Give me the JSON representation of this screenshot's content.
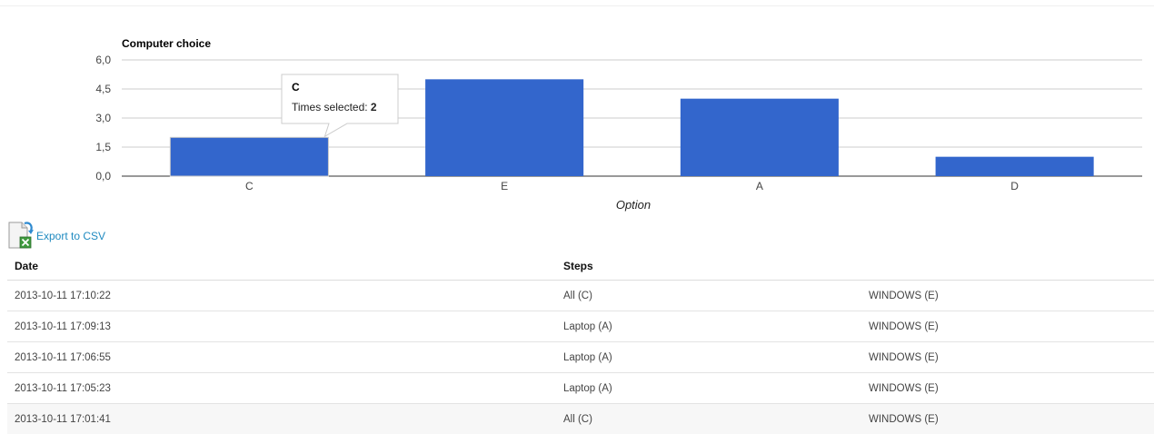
{
  "chart_data": {
    "type": "bar",
    "title": "Computer choice",
    "categories": [
      "C",
      "E",
      "A",
      "D"
    ],
    "series": [
      {
        "values": [
          2,
          5,
          4,
          1
        ]
      }
    ],
    "xlabel": "Option",
    "ylabel": "",
    "ylim": [
      0,
      6
    ],
    "yticks": [
      "6,0",
      "4,5",
      "3,0",
      "1,5",
      "0,0"
    ],
    "grid": true,
    "bar_color": "#3366cc",
    "tooltip": {
      "category": "C",
      "label": "Times selected: ",
      "value": "2"
    }
  },
  "export": {
    "label": "Export to CSV",
    "icon": "csv-export-icon"
  },
  "table": {
    "headers": [
      "Date",
      "Steps",
      ""
    ],
    "rows": [
      [
        "2013-10-11 17:10:22",
        "All (C)",
        "WINDOWS (E)"
      ],
      [
        "2013-10-11 17:09:13",
        "Laptop (A)",
        "WINDOWS (E)"
      ],
      [
        "2013-10-11 17:06:55",
        "Laptop (A)",
        "WINDOWS (E)"
      ],
      [
        "2013-10-11 17:05:23",
        "Laptop (A)",
        "WINDOWS (E)"
      ],
      [
        "2013-10-11 17:01:41",
        "All (C)",
        "WINDOWS (E)"
      ]
    ]
  }
}
